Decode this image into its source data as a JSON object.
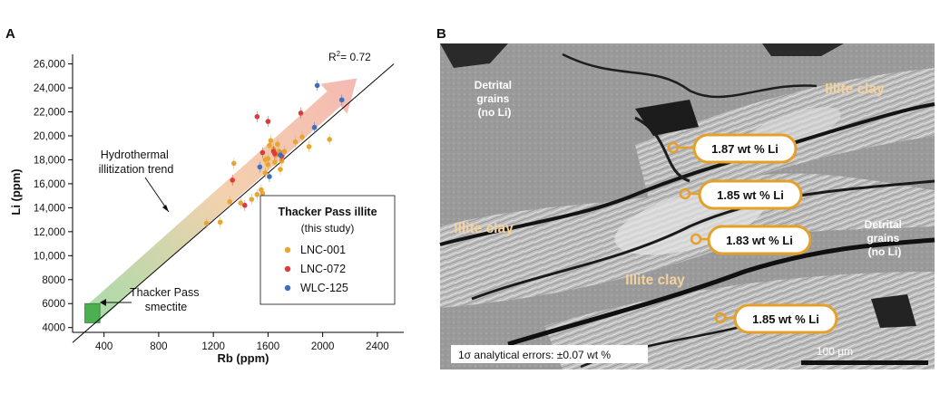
{
  "panel_a_label": "A",
  "panel_b_label": "B",
  "chart_data": {
    "type": "scatter",
    "xlabel": "Rb (ppm)",
    "ylabel": "Li (ppm)",
    "xlim": [
      170,
      2560
    ],
    "ylim": [
      3600,
      26800
    ],
    "xticks": [
      400,
      800,
      1200,
      1600,
      2000,
      2400
    ],
    "yticks": [
      4000,
      6000,
      8000,
      10000,
      12000,
      14000,
      16000,
      18000,
      20000,
      22000,
      24000,
      26000
    ],
    "xtick_labels": [
      "400",
      "800",
      "1200",
      "1600",
      "2000",
      "2400"
    ],
    "ytick_labels": [
      "4000",
      "6000",
      "8000",
      "10,000",
      "12,000",
      "14,000",
      "16,000",
      "18,000",
      "20,000",
      "22,000",
      "24,000",
      "26,000"
    ],
    "fit_line": {
      "x": [
        170,
        2520
      ],
      "y": [
        2750,
        26000
      ]
    },
    "r2_text": "= 0.72",
    "r2_symbol": "R",
    "r2_exponent": "2",
    "trend_arrow": {
      "from": [
        300,
        5000
      ],
      "to": [
        2250,
        24800
      ]
    },
    "trend_label": [
      "Hydrothermal",
      "illitization trend"
    ],
    "smectite_box": {
      "x": [
        260,
        370
      ],
      "y": [
        4400,
        6000
      ],
      "color": "#4caf50"
    },
    "smectite_label": [
      "Thacker Pass",
      "smectite"
    ],
    "legend": {
      "title": "Thacker Pass illite",
      "subtitle": "(this study)",
      "position": "bottom-right"
    },
    "series": [
      {
        "name": "LNC-001",
        "color": "#e8a530",
        "x": [
          1150,
          1250,
          1320,
          1400,
          1480,
          1520,
          1560,
          1580,
          1600,
          1610,
          1620,
          1640,
          1650,
          1660,
          1670,
          1680,
          1690,
          1700,
          1700,
          1720,
          1600,
          1580,
          1550,
          1800,
          1850,
          1900,
          2050,
          1350
        ],
        "y": [
          12700,
          12800,
          14500,
          14400,
          14700,
          15100,
          15200,
          16900,
          17600,
          19200,
          19600,
          18900,
          17800,
          18400,
          19300,
          18700,
          17200,
          17900,
          18300,
          18700,
          18100,
          18000,
          15500,
          19500,
          19900,
          19100,
          19700,
          17700
        ]
      },
      {
        "name": "LNC-072",
        "color": "#dd3b3b",
        "x": [
          1340,
          1430,
          1520,
          1560,
          1600,
          1640,
          1650,
          1700,
          1840
        ],
        "y": [
          16300,
          14200,
          21600,
          18600,
          21200,
          18700,
          18500,
          18300,
          21900
        ]
      },
      {
        "name": "WLC-125",
        "color": "#3f6fb8",
        "x": [
          1540,
          1610,
          1940,
          1960,
          2140,
          1690
        ],
        "y": [
          17400,
          16600,
          20700,
          24200,
          23000,
          18400
        ]
      }
    ]
  },
  "image_b": {
    "labels": {
      "detrital_left": [
        "Detrital",
        "grains",
        "(no Li)"
      ],
      "detrital_right": [
        "Detrital",
        "grains",
        "(no Li)"
      ],
      "illite_top": "Illite clay",
      "illite_left": "Illite clay",
      "illite_center": "Illite clay"
    },
    "callouts": [
      "1.87 wt % Li",
      "1.85 wt % Li",
      "1.83 wt % Li",
      "1.85 wt % Li"
    ],
    "error_note": "1σ analytical errors: ±0.07 wt %",
    "scale_bar": "100 µm"
  }
}
